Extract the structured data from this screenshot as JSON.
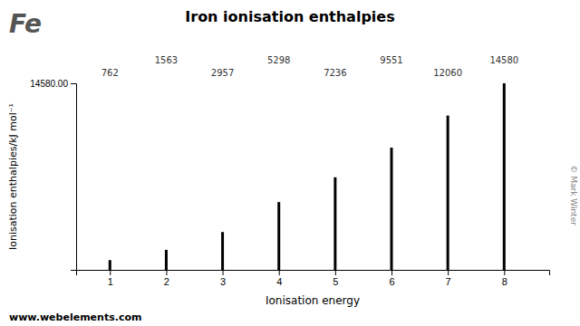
{
  "chart_data": {
    "type": "bar",
    "title": "Iron ionisation enthalpies",
    "xlabel": "Ionisation energy",
    "ylabel": "Ionisation enthalpies/kJ mol⁻¹",
    "x": [
      1,
      2,
      3,
      4,
      5,
      6,
      7,
      8
    ],
    "values": [
      762,
      1563,
      2957,
      5298,
      7236,
      9551,
      12060,
      14580
    ],
    "color": "#000000",
    "xlim": [
      0.4,
      8.8
    ],
    "xticks": [
      1,
      2,
      3,
      4,
      5,
      6,
      7,
      8
    ],
    "ylim": [
      0,
      14580
    ],
    "yticks": [
      {
        "value": 14580,
        "label": "14580.00"
      }
    ],
    "data_labels": true,
    "annotations": [
      "Fe",
      "© Mark Winter",
      "www.webelements.com"
    ]
  }
}
